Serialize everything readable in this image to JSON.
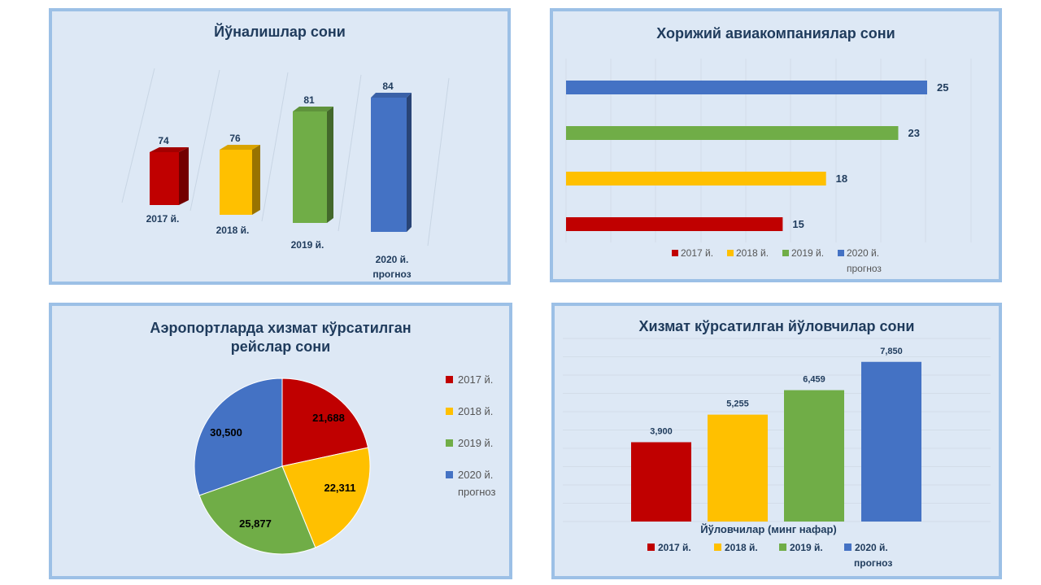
{
  "colors": {
    "y2017": "#c00000",
    "y2018": "#ffc000",
    "y2019": "#70ad47",
    "y2020": "#4472c4",
    "title": "#1f3b5c",
    "label": "#1f3b5c",
    "legend": "#555555"
  },
  "chart_data": [
    {
      "type": "bar",
      "title": "Йўналишлар сони",
      "categories": [
        "2017 й.",
        "2018 й.",
        "2019 й.",
        "2020 й. прогноз"
      ],
      "category_lines": [
        [
          "2017 й."
        ],
        [
          "2018 й."
        ],
        [
          "2019 й."
        ],
        [
          "2020 й.",
          "прогноз"
        ]
      ],
      "values": [
        74,
        76,
        81,
        84
      ],
      "value_labels": [
        "74",
        "76",
        "81",
        "84"
      ],
      "style": "3d-column"
    },
    {
      "type": "bar",
      "orientation": "horizontal",
      "title": "Хорижий авиакомпаниялар сони",
      "series": [
        {
          "name": "2020 й. прогноз",
          "value": 25,
          "label": "25"
        },
        {
          "name": "2019 й.",
          "value": 23,
          "label": "23"
        },
        {
          "name": "2018 й.",
          "value": 18,
          "label": "18"
        },
        {
          "name": "2017 й.",
          "value": 15,
          "label": "15"
        }
      ],
      "legend": [
        "2017 й.",
        "2018 й.",
        "2019 й.",
        "2020 й."
      ],
      "legend_extra": "прогноз",
      "legend_position": "bottom",
      "xlim": [
        0,
        26
      ]
    },
    {
      "type": "pie",
      "title_lines": [
        "Аэропортларда хизмат кўрсатилган",
        "рейслар сони"
      ],
      "slices": [
        {
          "name": "2017 й.",
          "value": 21688,
          "label": "21,688"
        },
        {
          "name": "2018 й.",
          "value": 22311,
          "label": "22,311"
        },
        {
          "name": "2019 й.",
          "value": 25877,
          "label": "25,877"
        },
        {
          "name": "2020 й. прогноз",
          "value": 30500,
          "label": "30,500"
        }
      ],
      "legend": [
        "2017 й.",
        "2018 й.",
        "2019 й.",
        "2020 й."
      ],
      "legend_extra": "прогноз",
      "legend_position": "right"
    },
    {
      "type": "bar",
      "title": "Хизмат кўрсатилган йўловчилар сони",
      "xlabel": "Йўловчилар (минг нафар)",
      "categories": [
        "2017 й.",
        "2018 й.",
        "2019 й.",
        "2020 й. прогноз"
      ],
      "values": [
        3900,
        5255,
        6459,
        7850
      ],
      "value_labels": [
        "3,900",
        "5,255",
        "6,459",
        "7,850"
      ],
      "legend": [
        "2017 й.",
        "2018 й.",
        "2019 й.",
        "2020 й."
      ],
      "legend_extra": "прогноз",
      "legend_position": "bottom",
      "ylim": [
        0,
        8000
      ],
      "grid": true
    }
  ]
}
